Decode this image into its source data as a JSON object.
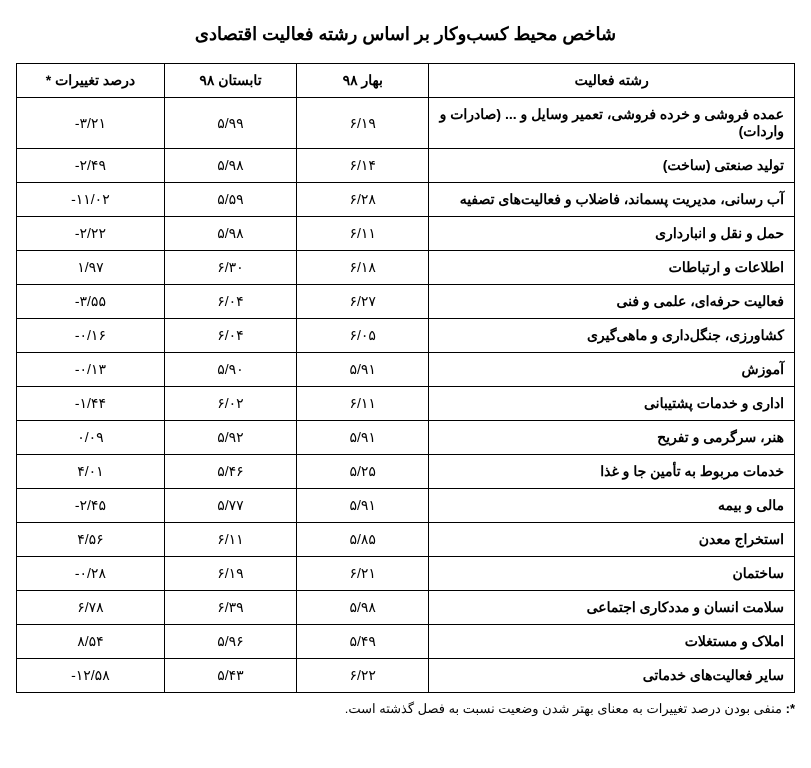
{
  "title": "شاخص محیط کسب‌وکار بر اساس رشته فعالیت اقتصادی",
  "columns": {
    "activity": "رشته فعالیت",
    "spring98": "بهار ۹۸",
    "summer98": "تابستان ۹۸",
    "pct_change": "درصد تغییرات *"
  },
  "rows": [
    {
      "activity": "عمده فروشی و خرده فروشی، تعمیر وسایل و ... (صادرات و واردات)",
      "spring98": "۶/۱۹",
      "summer98": "۵/۹۹",
      "pct": "-۳/۲۱"
    },
    {
      "activity": "تولید صنعتی (ساخت)",
      "spring98": "۶/۱۴",
      "summer98": "۵/۹۸",
      "pct": "-۲/۴۹"
    },
    {
      "activity": "آب رسانی، مدیریت پسماند، فاضلاب و فعالیت‌های تصفیه",
      "spring98": "۶/۲۸",
      "summer98": "۵/۵۹",
      "pct": "-۱۱/۰۲"
    },
    {
      "activity": "حمل و نقل و انبارداری",
      "spring98": "۶/۱۱",
      "summer98": "۵/۹۸",
      "pct": "-۲/۲۲"
    },
    {
      "activity": "اطلاعات و ارتباطات",
      "spring98": "۶/۱۸",
      "summer98": "۶/۳۰",
      "pct": "۱/۹۷"
    },
    {
      "activity": "فعالیت حرفه‌ای، علمی و فنی",
      "spring98": "۶/۲۷",
      "summer98": "۶/۰۴",
      "pct": "-۳/۵۵"
    },
    {
      "activity": "کشاورزی، جنگل‌داری و ماهی‌گیری",
      "spring98": "۶/۰۵",
      "summer98": "۶/۰۴",
      "pct": "-۰/۱۶"
    },
    {
      "activity": "آموزش",
      "spring98": "۵/۹۱",
      "summer98": "۵/۹۰",
      "pct": "-۰/۱۳"
    },
    {
      "activity": "اداری و خدمات پشتیبانی",
      "spring98": "۶/۱۱",
      "summer98": "۶/۰۲",
      "pct": "-۱/۴۴"
    },
    {
      "activity": "هنر، سرگرمی و تفریح",
      "spring98": "۵/۹۱",
      "summer98": "۵/۹۲",
      "pct": "۰/۰۹"
    },
    {
      "activity": "خدمات مربوط به تأمین جا و غذا",
      "spring98": "۵/۲۵",
      "summer98": "۵/۴۶",
      "pct": "۴/۰۱"
    },
    {
      "activity": "مالی و بیمه",
      "spring98": "۵/۹۱",
      "summer98": "۵/۷۷",
      "pct": "-۲/۴۵"
    },
    {
      "activity": "استخراج معدن",
      "spring98": "۵/۸۵",
      "summer98": "۶/۱۱",
      "pct": "۴/۵۶"
    },
    {
      "activity": "ساختمان",
      "spring98": "۶/۲۱",
      "summer98": "۶/۱۹",
      "pct": "-۰/۲۸"
    },
    {
      "activity": "سلامت انسان و مددکاری اجتماعی",
      "spring98": "۵/۹۸",
      "summer98": "۶/۳۹",
      "pct": "۶/۷۸"
    },
    {
      "activity": "املاک و مستغلات",
      "spring98": "۵/۴۹",
      "summer98": "۵/۹۶",
      "pct": "۸/۵۴"
    },
    {
      "activity": "سایر فعالیت‌های خدماتی",
      "spring98": "۶/۲۲",
      "summer98": "۵/۴۳",
      "pct": "-۱۲/۵۸"
    }
  ],
  "footnote_label": "*:",
  "footnote_text": "منفی بودن درصد تغییرات به معنای بهتر شدن وضعیت نسبت به فصل گذشته است."
}
